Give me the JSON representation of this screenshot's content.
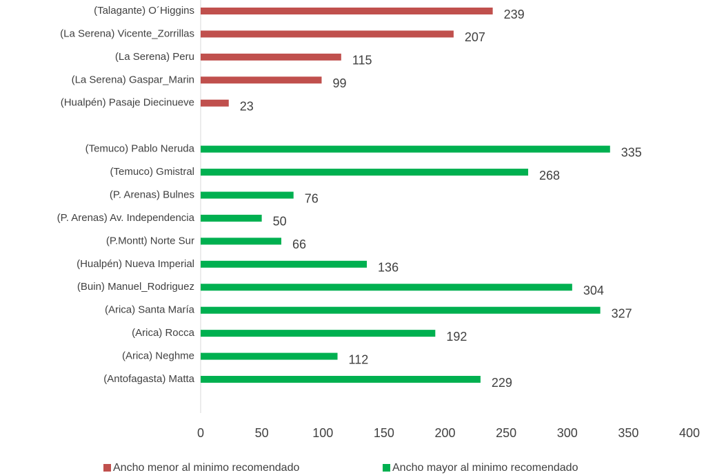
{
  "chart_data": {
    "type": "hbar",
    "categories": [
      "(Talagante) O´Higgins",
      "(La Serena) Vicente_Zorrillas",
      "(La Serena) Peru",
      "(La Serena) Gaspar_Marin",
      "(Hualpén) Pasaje Diecinueve",
      null,
      "(Temuco) Pablo Neruda",
      "(Temuco) Gmistral",
      "(P. Arenas) Bulnes",
      "(P. Arenas) Av. Independencia",
      "(P.Montt) Norte Sur",
      "(Hualpén) Nueva Imperial",
      "(Buin) Manuel_Rodriguez",
      "(Arica) Santa María",
      "(Arica) Rocca",
      "(Arica) Neghme",
      "(Antofagasta) Matta"
    ],
    "series": [
      {
        "name": "Ancho menor al minimo recomendado",
        "color": "#c0504d",
        "values": [
          239,
          207,
          115,
          99,
          23,
          null,
          null,
          null,
          null,
          null,
          null,
          null,
          null,
          null,
          null,
          null,
          null
        ]
      },
      {
        "name": "Ancho mayor al minimo recomendado",
        "color": "#00b050",
        "values": [
          null,
          null,
          null,
          null,
          null,
          null,
          335,
          268,
          76,
          50,
          66,
          136,
          304,
          327,
          192,
          112,
          229
        ]
      }
    ],
    "xlim": [
      0,
      400
    ],
    "xticks": [
      0,
      50,
      100,
      150,
      200,
      250,
      300,
      350,
      400
    ],
    "grid": false,
    "legend": "bottom"
  }
}
